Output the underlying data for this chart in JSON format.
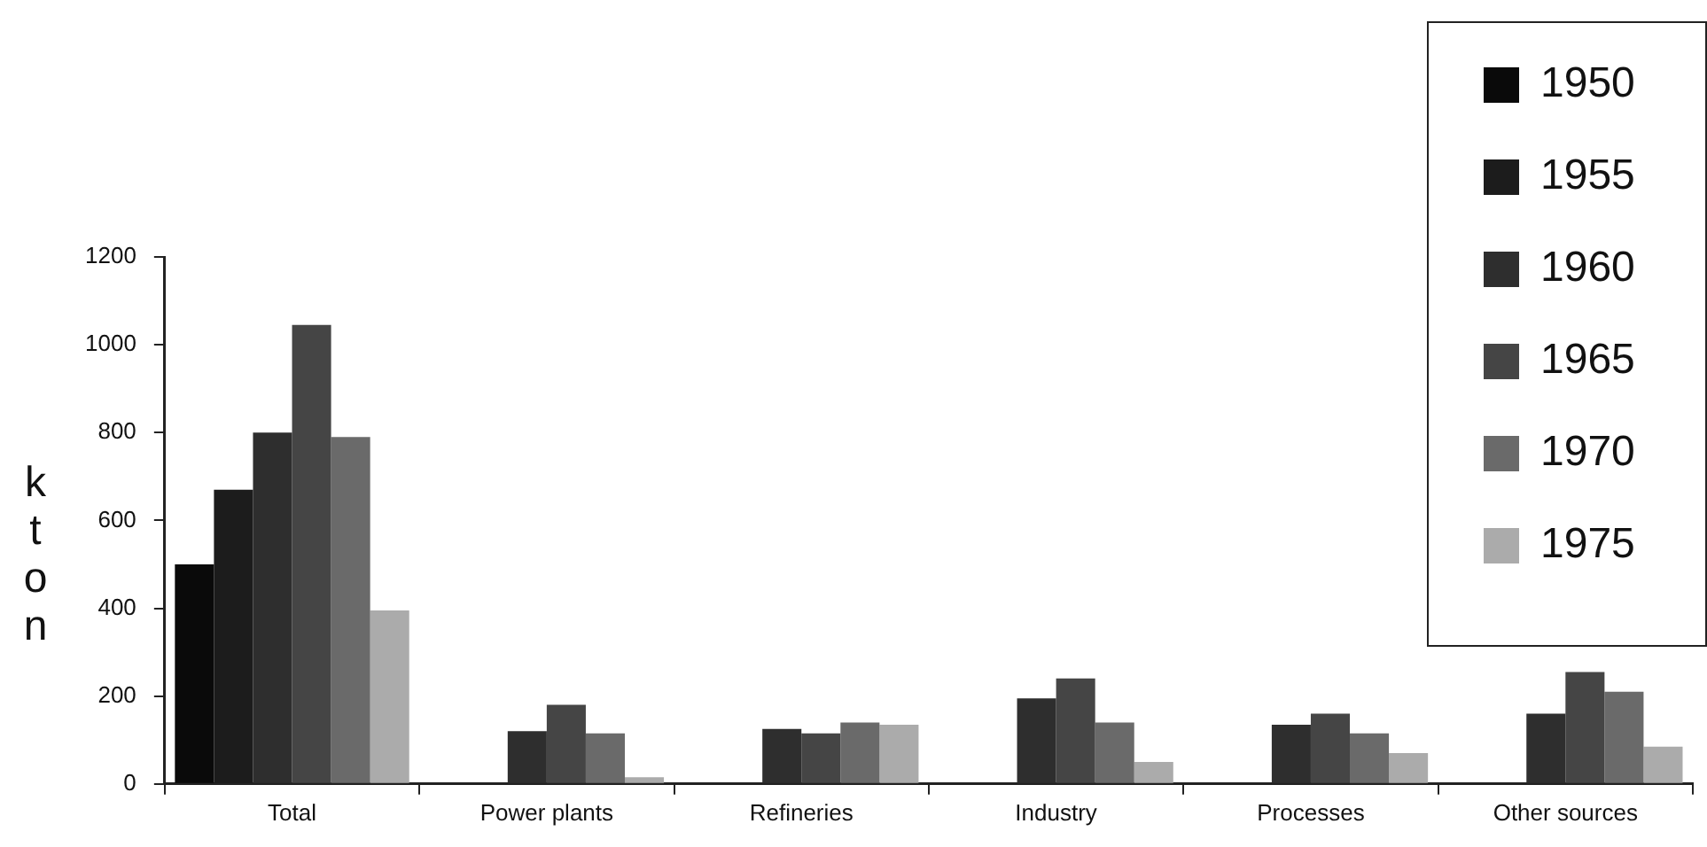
{
  "chart_data": {
    "type": "bar",
    "ylabel": "kton",
    "categories": [
      "Total",
      "Power plants",
      "Refineries",
      "Industry",
      "Processes",
      "Other sources"
    ],
    "series": [
      {
        "name": "1950",
        "color": "#0a0a0a",
        "values": [
          500,
          null,
          null,
          null,
          null,
          null
        ]
      },
      {
        "name": "1955",
        "color": "#1c1c1c",
        "values": [
          670,
          null,
          null,
          null,
          null,
          null
        ]
      },
      {
        "name": "1960",
        "color": "#2e2e2e",
        "values": [
          800,
          120,
          125,
          195,
          135,
          160
        ]
      },
      {
        "name": "1965",
        "color": "#454545",
        "values": [
          1045,
          180,
          115,
          240,
          160,
          255
        ]
      },
      {
        "name": "1970",
        "color": "#6a6a6a",
        "values": [
          790,
          115,
          140,
          140,
          115,
          210
        ]
      },
      {
        "name": "1975",
        "color": "#ababab",
        "values": [
          395,
          15,
          135,
          50,
          70,
          85
        ]
      }
    ],
    "ylim": [
      0,
      1200
    ],
    "yticks": [
      0,
      200,
      400,
      600,
      800,
      1000,
      1200
    ],
    "grid": false,
    "legend": "top right"
  }
}
